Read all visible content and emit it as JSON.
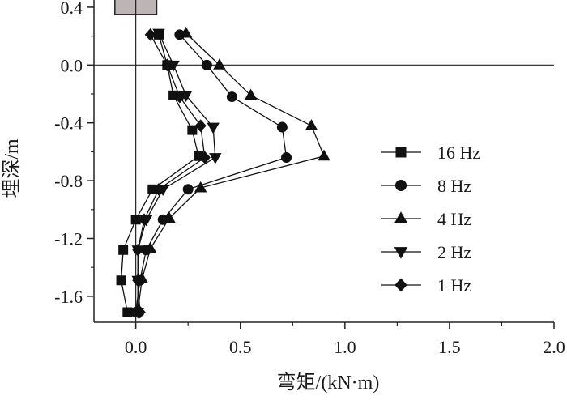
{
  "chart_data": {
    "type": "line",
    "xlabel": "弯矩/(kN·m)",
    "ylabel": "埋深/m",
    "xlim": [
      -0.2,
      2.0
    ],
    "ylim": [
      -1.78,
      0.45
    ],
    "x_ticks": [
      0.0,
      0.5,
      1.0,
      1.5,
      2.0
    ],
    "x_tick_labels": [
      "0.0",
      "0.5",
      "1.0",
      "1.5",
      "2.0"
    ],
    "y_ticks": [
      0.4,
      0.0,
      -0.4,
      -0.8,
      -1.2,
      -1.6
    ],
    "y_tick_labels": [
      "0.4",
      "0.0",
      "-0.4",
      "-0.8",
      "-1.2",
      "-1.6"
    ],
    "grid": false,
    "legend_position": "right",
    "reference_lines": {
      "x": 0.0,
      "y": 0.0
    },
    "pile_cap": {
      "x_range": [
        -0.1,
        0.1
      ],
      "y_range": [
        0.35,
        0.49
      ],
      "color": "#bdb5b5"
    },
    "series": [
      {
        "name": "16 Hz",
        "marker": "square",
        "points": [
          [
            0.11,
            0.21
          ],
          [
            0.15,
            0.0
          ],
          [
            0.18,
            -0.21
          ],
          [
            0.27,
            -0.45
          ],
          [
            0.3,
            -0.63
          ],
          [
            0.08,
            -0.86
          ],
          [
            0.0,
            -1.07
          ],
          [
            -0.06,
            -1.28
          ],
          [
            -0.07,
            -1.49
          ],
          [
            -0.04,
            -1.71
          ]
        ]
      },
      {
        "name": "8 Hz",
        "marker": "circle",
        "points": [
          [
            0.21,
            0.21
          ],
          [
            0.34,
            0.0
          ],
          [
            0.46,
            -0.22
          ],
          [
            0.7,
            -0.43
          ],
          [
            0.72,
            -0.64
          ],
          [
            0.25,
            -0.86
          ],
          [
            0.13,
            -1.07
          ],
          [
            0.05,
            -1.28
          ],
          [
            0.02,
            -1.49
          ],
          [
            0.0,
            -1.71
          ]
        ]
      },
      {
        "name": "4 Hz",
        "marker": "triangle-up",
        "points": [
          [
            0.24,
            0.22
          ],
          [
            0.4,
            0.0
          ],
          [
            0.55,
            -0.21
          ],
          [
            0.84,
            -0.42
          ],
          [
            0.9,
            -0.63
          ],
          [
            0.31,
            -0.85
          ],
          [
            0.16,
            -1.06
          ],
          [
            0.07,
            -1.27
          ],
          [
            0.03,
            -1.48
          ],
          [
            0.01,
            -1.7
          ]
        ]
      },
      {
        "name": "2 Hz",
        "marker": "triangle-down",
        "points": [
          [
            0.11,
            0.22
          ],
          [
            0.18,
            0.0
          ],
          [
            0.24,
            -0.21
          ],
          [
            0.37,
            -0.43
          ],
          [
            0.38,
            -0.64
          ],
          [
            0.13,
            -0.86
          ],
          [
            0.05,
            -1.07
          ],
          [
            0.01,
            -1.28
          ],
          [
            0.01,
            -1.49
          ],
          [
            0.01,
            -1.71
          ]
        ]
      },
      {
        "name": "1 Hz",
        "marker": "diamond",
        "points": [
          [
            0.07,
            0.21
          ],
          [
            0.15,
            0.0
          ],
          [
            0.21,
            -0.22
          ],
          [
            0.31,
            -0.42
          ],
          [
            0.33,
            -0.64
          ],
          [
            0.11,
            -0.86
          ],
          [
            0.04,
            -1.07
          ],
          [
            0.01,
            -1.28
          ],
          [
            0.01,
            -1.49
          ],
          [
            0.02,
            -1.71
          ]
        ]
      }
    ]
  }
}
